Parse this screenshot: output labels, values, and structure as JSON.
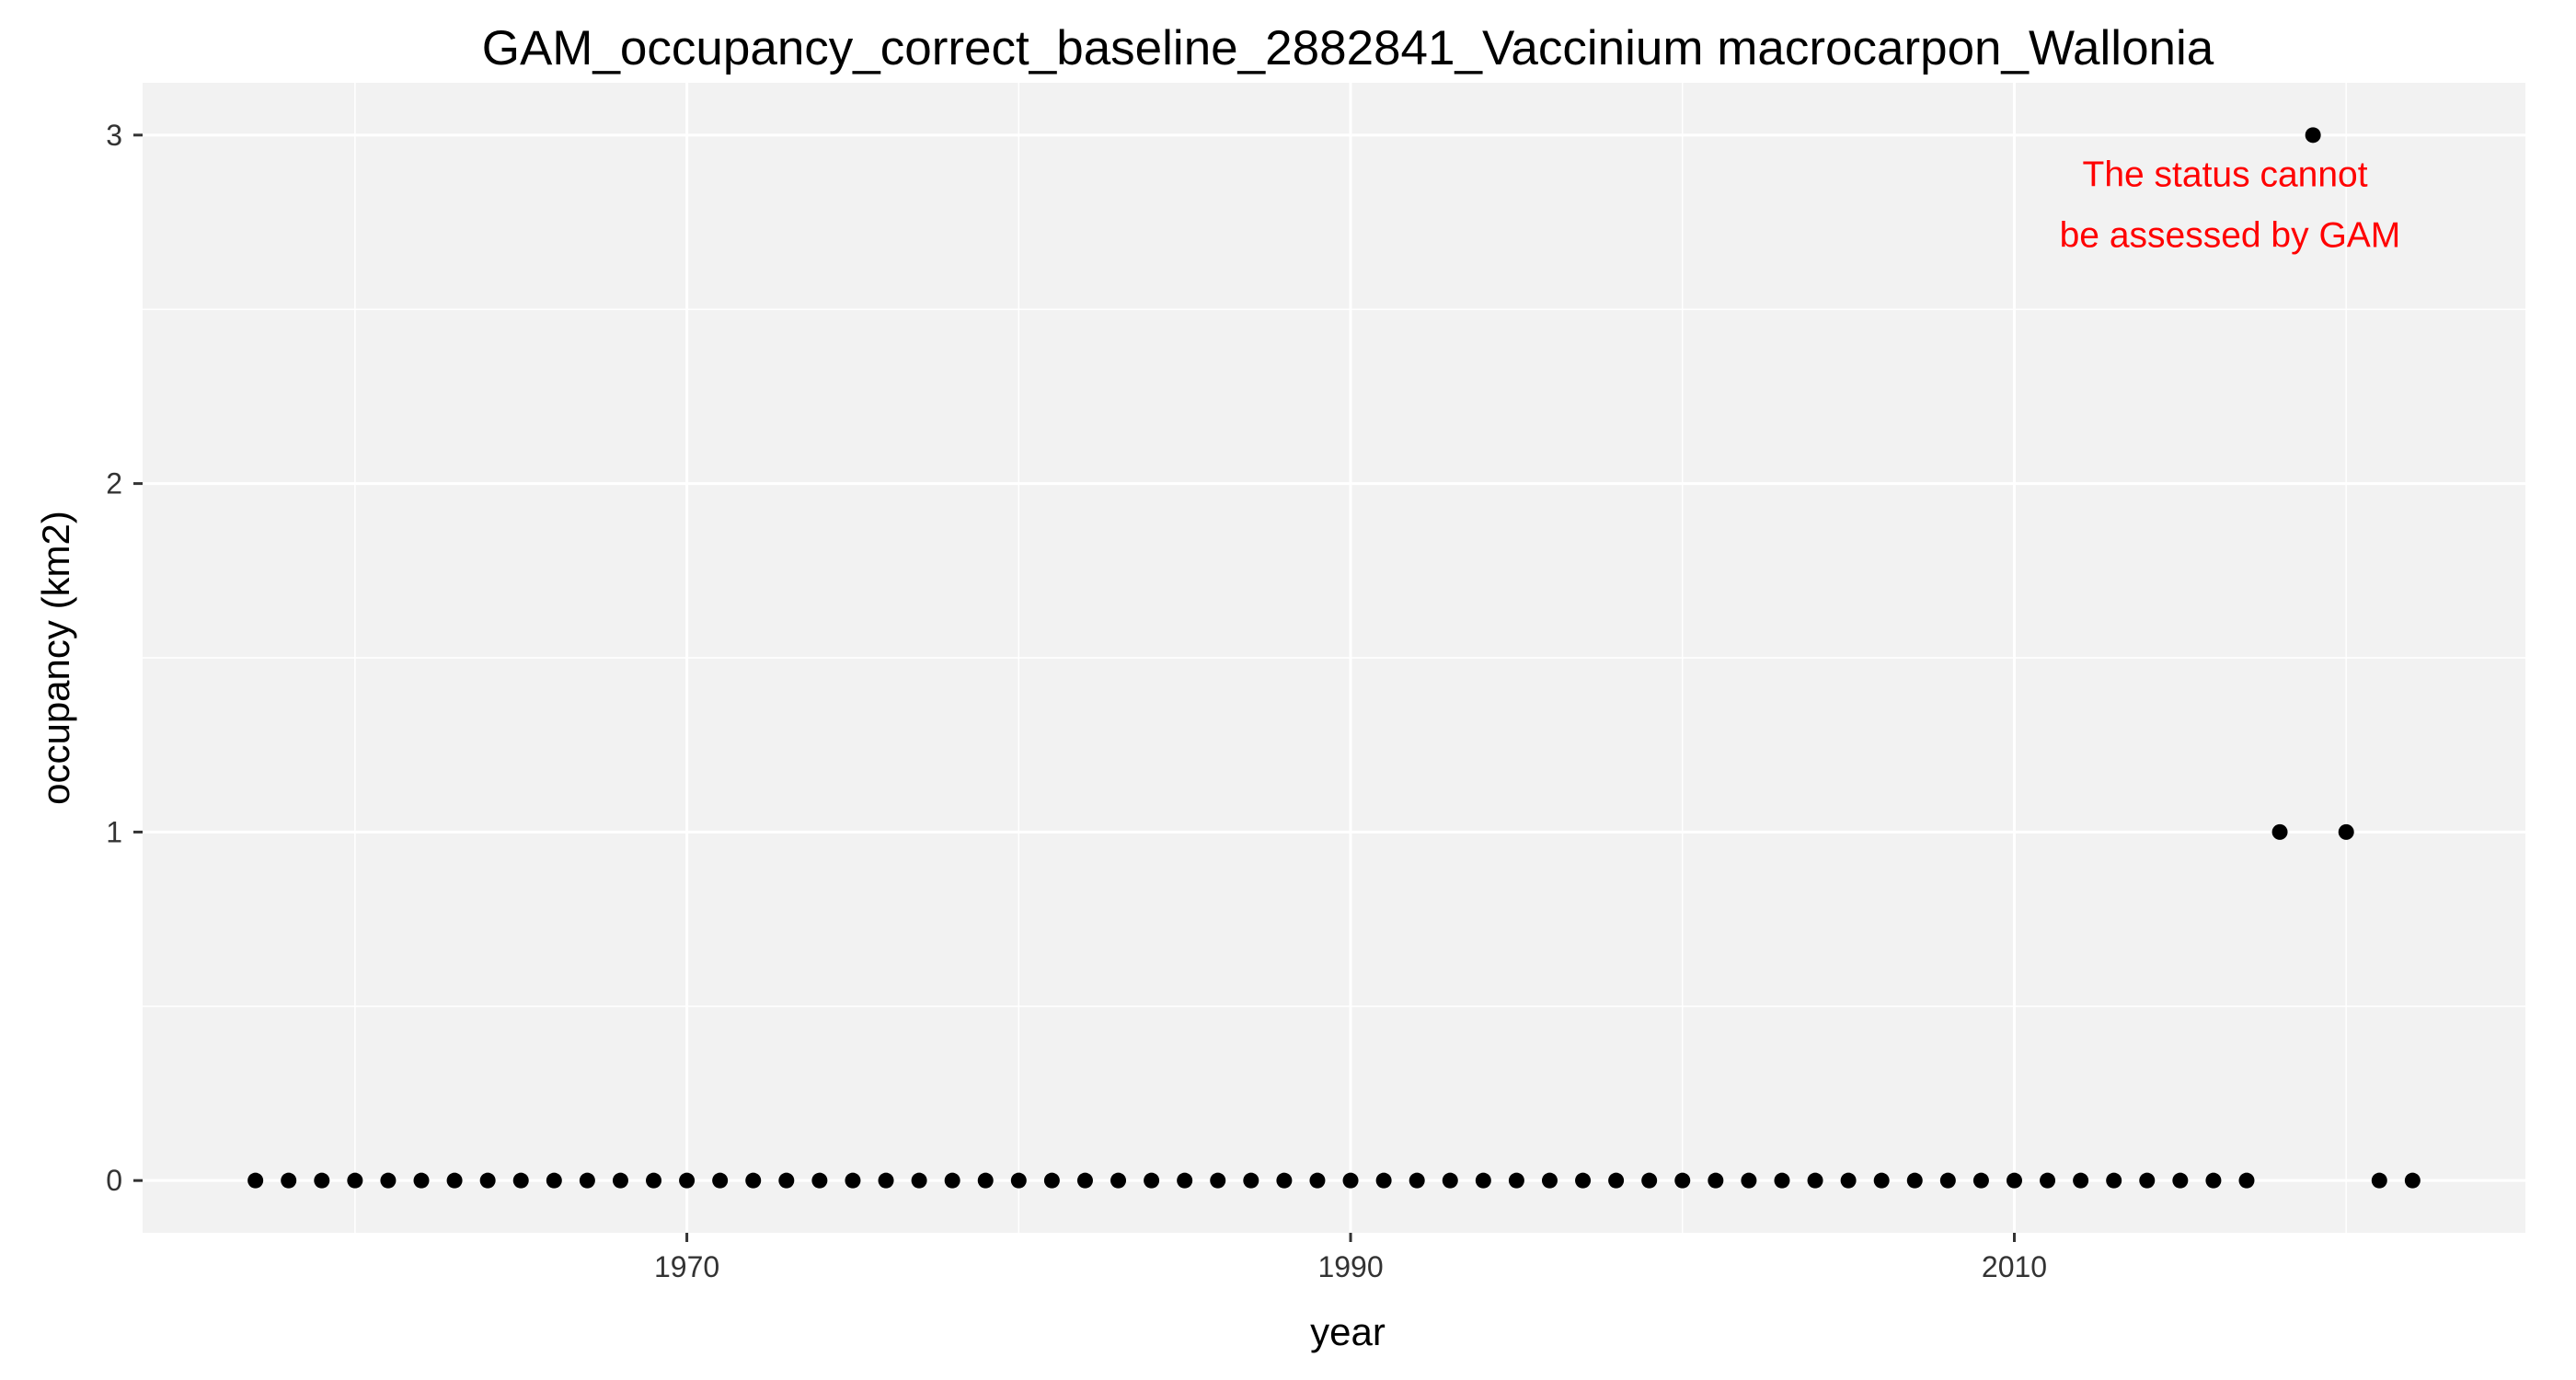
{
  "chart_data": {
    "type": "scatter",
    "title": "GAM_occupancy_correct_baseline_2882841_Vaccinium macrocarpon_Wallonia",
    "xlabel": "year",
    "ylabel": "occupancy (km2)",
    "xlim": [
      1953.6,
      2025.4
    ],
    "ylim": [
      -0.15,
      3.15
    ],
    "x_ticks": [
      1970,
      1990,
      2010
    ],
    "x_minor_ticks": [
      1960,
      1980,
      2000,
      2020
    ],
    "y_ticks": [
      0,
      1,
      2,
      3
    ],
    "y_minor_ticks": [
      0.5,
      1.5,
      2.5
    ],
    "grid": true,
    "legend": "none",
    "x": [
      1957,
      1958,
      1959,
      1960,
      1961,
      1962,
      1963,
      1964,
      1965,
      1966,
      1967,
      1968,
      1969,
      1970,
      1971,
      1972,
      1973,
      1974,
      1975,
      1976,
      1977,
      1978,
      1979,
      1980,
      1981,
      1982,
      1983,
      1984,
      1985,
      1986,
      1987,
      1988,
      1989,
      1990,
      1991,
      1992,
      1993,
      1994,
      1995,
      1996,
      1997,
      1998,
      1999,
      2000,
      2001,
      2002,
      2003,
      2004,
      2005,
      2006,
      2007,
      2008,
      2009,
      2010,
      2011,
      2012,
      2013,
      2014,
      2015,
      2016,
      2017,
      2018,
      2019,
      2020,
      2021,
      2022
    ],
    "y": [
      0,
      0,
      0,
      0,
      0,
      0,
      0,
      0,
      0,
      0,
      0,
      0,
      0,
      0,
      0,
      0,
      0,
      0,
      0,
      0,
      0,
      0,
      0,
      0,
      0,
      0,
      0,
      0,
      0,
      0,
      0,
      0,
      0,
      0,
      0,
      0,
      0,
      0,
      0,
      0,
      0,
      0,
      0,
      0,
      0,
      0,
      0,
      0,
      0,
      0,
      0,
      0,
      0,
      0,
      0,
      0,
      0,
      0,
      0,
      0,
      0,
      1,
      3,
      1,
      0,
      0
    ],
    "annotation": {
      "lines": [
        "The status cannot",
        "be assessed by GAM"
      ],
      "x": 2016.5,
      "y": 2.8,
      "color": "#ff0000"
    },
    "colors": {
      "panel_background": "#f2f2f2",
      "grid": "#ffffff",
      "point": "#000000",
      "axis_ticks": "#333333"
    }
  }
}
